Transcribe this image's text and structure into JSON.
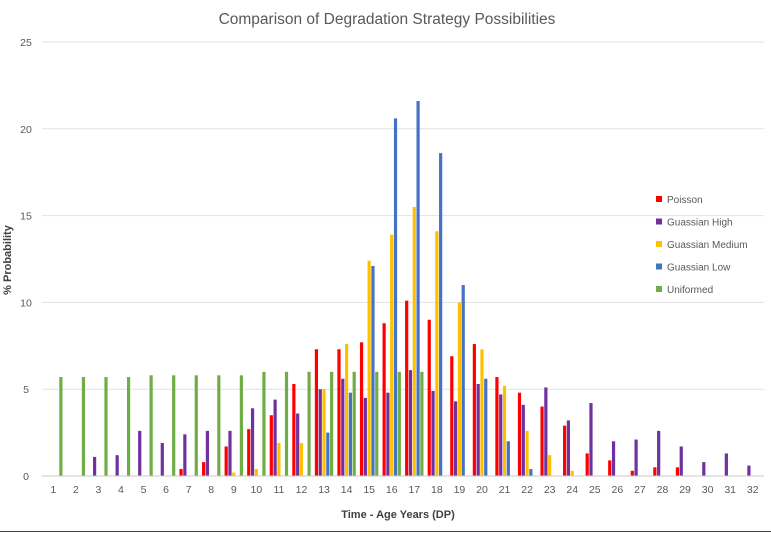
{
  "chart_data": {
    "type": "bar",
    "title": "Comparison of Degradation Strategy Possibilities",
    "xlabel": "Time - Age Years (DP)",
    "ylabel": "% Probability",
    "ylim": [
      0,
      25
    ],
    "yticks": [
      "0",
      "5",
      "10",
      "15",
      "20",
      "25"
    ],
    "grid": true,
    "legend_position": "right",
    "categories": [
      "1",
      "2",
      "3",
      "4",
      "5",
      "6",
      "7",
      "8",
      "9",
      "10",
      "11",
      "12",
      "13",
      "14",
      "15",
      "16",
      "17",
      "18",
      "19",
      "20",
      "21",
      "22",
      "23",
      "24",
      "25",
      "26",
      "27",
      "28",
      "29",
      "30",
      "31",
      "32"
    ],
    "series": [
      {
        "name": "Poisson",
        "color": "#ff0000",
        "values": [
          0,
          0,
          0,
          0,
          0,
          0,
          0.4,
          0.8,
          1.7,
          2.7,
          3.5,
          5.3,
          7.3,
          7.3,
          7.7,
          8.8,
          10.1,
          9.0,
          6.9,
          7.6,
          5.7,
          4.8,
          4.0,
          2.9,
          1.3,
          0.9,
          0.3,
          0.5,
          0.5,
          0,
          0,
          0
        ]
      },
      {
        "name": "Guassian High",
        "color": "#7030a0",
        "values": [
          0,
          0,
          1.1,
          1.2,
          2.6,
          1.9,
          2.4,
          2.6,
          2.6,
          3.9,
          4.4,
          3.6,
          5.0,
          5.6,
          4.5,
          4.8,
          6.1,
          4.9,
          4.3,
          5.3,
          4.7,
          4.1,
          5.1,
          3.2,
          4.2,
          2.0,
          2.1,
          2.6,
          1.7,
          0.8,
          1.3,
          0.6
        ]
      },
      {
        "name": "Guassian Medium",
        "color": "#ffc000",
        "values": [
          0,
          0,
          0,
          0,
          0,
          0,
          0,
          0,
          0.2,
          0.4,
          1.9,
          1.9,
          5.0,
          7.6,
          12.4,
          13.9,
          15.5,
          14.1,
          10.0,
          7.3,
          5.2,
          2.6,
          1.2,
          0.3,
          0,
          0,
          0,
          0,
          0,
          0,
          0,
          0
        ]
      },
      {
        "name": "Guassian Low",
        "color": "#4472c4",
        "values": [
          0,
          0,
          0,
          0,
          0,
          0,
          0,
          0,
          0,
          0,
          0,
          0,
          2.5,
          4.8,
          12.1,
          20.6,
          21.6,
          18.6,
          11.0,
          5.6,
          2.0,
          0.4,
          0,
          0,
          0,
          0,
          0,
          0,
          0,
          0,
          0,
          0
        ]
      },
      {
        "name": "Uniformed",
        "color": "#70ad47",
        "values": [
          5.7,
          5.7,
          5.7,
          5.7,
          5.8,
          5.8,
          5.8,
          5.8,
          5.8,
          6.0,
          6.0,
          6.0,
          6.0,
          6.0,
          6.0,
          6.0,
          6.0,
          0,
          0,
          0,
          0,
          0,
          0,
          0,
          0,
          0,
          0,
          0,
          0,
          0,
          0,
          0
        ]
      }
    ]
  }
}
